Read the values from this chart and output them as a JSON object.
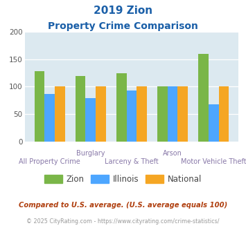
{
  "title_line1": "2019 Zion",
  "title_line2": "Property Crime Comparison",
  "categories": [
    "All Property Crime",
    "Burglary",
    "Larceny & Theft",
    "Arson",
    "Motor Vehicle Theft"
  ],
  "top_labels": [
    "",
    "Burglary",
    "",
    "Arson",
    ""
  ],
  "bottom_labels": [
    "All Property Crime",
    "",
    "Larceny & Theft",
    "",
    "Motor Vehicle Theft"
  ],
  "zion": [
    128,
    120,
    125,
    100,
    160
  ],
  "illinois": [
    87,
    79,
    93,
    100,
    68
  ],
  "national": [
    100,
    100,
    100,
    100,
    100
  ],
  "zion_color": "#7ab648",
  "illinois_color": "#4da6ff",
  "national_color": "#f5a623",
  "plot_bg": "#dce9f0",
  "title_color": "#1a5fa8",
  "xlabel_color": "#8878a8",
  "legend_color": "#444444",
  "footer_color": "#b04010",
  "copyright_color": "#999999",
  "footer_text": "Compared to U.S. average. (U.S. average equals 100)",
  "copyright_text": "© 2025 CityRating.com - https://www.cityrating.com/crime-statistics/",
  "ylim": [
    0,
    200
  ],
  "yticks": [
    0,
    50,
    100,
    150,
    200
  ]
}
